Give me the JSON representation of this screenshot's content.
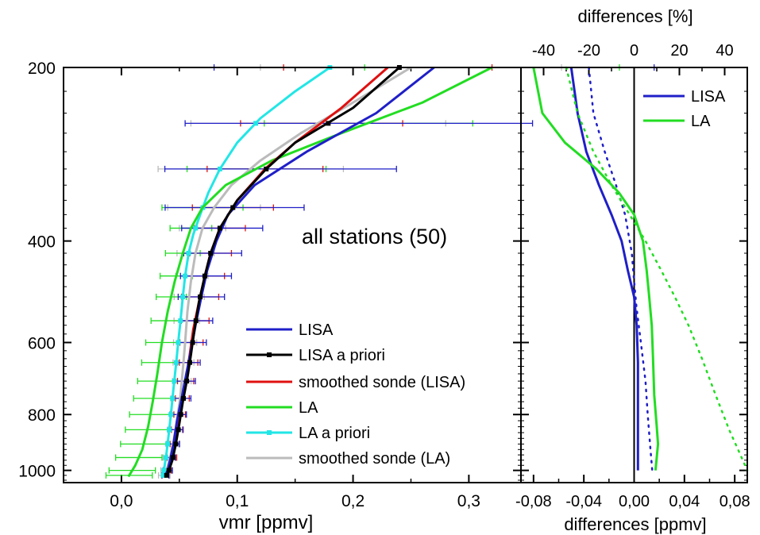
{
  "chart_data": [
    {
      "type": "line",
      "panel": "left",
      "annotation": "all stations (50)",
      "xlabel": "vmr [ppmv]",
      "ylabel": "",
      "xlim": [
        -0.05,
        0.345
      ],
      "ylim": [
        1050,
        200
      ],
      "y_scale": "log",
      "x_ticks": [
        0.0,
        0.1,
        0.2,
        0.3
      ],
      "x_tick_labels": [
        "0,0",
        "0,1",
        "0,2",
        "0,3"
      ],
      "y_ticks": [
        200,
        400,
        600,
        800,
        1000
      ],
      "y_tick_labels": [
        "200",
        "400",
        "600",
        "800",
        "1000"
      ],
      "legend_position": "bottom-right",
      "error_levels": [
        200,
        250,
        300,
        350,
        380,
        420,
        460,
        500,
        550,
        600,
        650,
        700,
        750,
        800,
        850,
        900,
        950,
        1000,
        1020
      ],
      "series": [
        {
          "name": "LISA",
          "color": "#1f1fc8",
          "marker": "none",
          "points": [
            [
              0.27,
              200
            ],
            [
              0.22,
              240
            ],
            [
              0.16,
              280
            ],
            [
              0.115,
              320
            ],
            [
              0.092,
              360
            ],
            [
              0.082,
              400
            ],
            [
              0.074,
              450
            ],
            [
              0.069,
              500
            ],
            [
              0.064,
              560
            ],
            [
              0.06,
              620
            ],
            [
              0.056,
              680
            ],
            [
              0.052,
              750
            ],
            [
              0.048,
              820
            ],
            [
              0.045,
              900
            ],
            [
              0.042,
              960
            ],
            [
              0.04,
              1000
            ],
            [
              0.038,
              1020
            ]
          ],
          "error_x": [
            0.19,
            0.15,
            0.1,
            0.06,
            0.035,
            0.025,
            0.022,
            0.02,
            0.014,
            0.012,
            0.01,
            0.009,
            0.008,
            0.007,
            0.006,
            0.005,
            0.004,
            0.004,
            0.003
          ]
        },
        {
          "name": "LISA a priori",
          "color": "#000000",
          "marker": "square",
          "points": [
            [
              0.24,
              200
            ],
            [
              0.2,
              235
            ],
            [
              0.15,
              270
            ],
            [
              0.125,
              300
            ],
            [
              0.1,
              340
            ],
            [
              0.085,
              380
            ],
            [
              0.077,
              420
            ],
            [
              0.072,
              460
            ],
            [
              0.067,
              510
            ],
            [
              0.063,
              570
            ],
            [
              0.06,
              630
            ],
            [
              0.057,
              690
            ],
            [
              0.053,
              760
            ],
            [
              0.05,
              830
            ],
            [
              0.047,
              900
            ],
            [
              0.044,
              960
            ],
            [
              0.041,
              1000
            ],
            [
              0.039,
              1020
            ]
          ]
        },
        {
          "name": "smoothed sonde (LISA)",
          "color": "#e01010",
          "marker": "none",
          "points": [
            [
              0.23,
              200
            ],
            [
              0.19,
              235
            ],
            [
              0.15,
              270
            ],
            [
              0.124,
              300
            ],
            [
              0.1,
              340
            ],
            [
              0.085,
              380
            ],
            [
              0.077,
              420
            ],
            [
              0.072,
              460
            ],
            [
              0.067,
              510
            ],
            [
              0.062,
              570
            ],
            [
              0.059,
              630
            ],
            [
              0.056,
              690
            ],
            [
              0.052,
              760
            ],
            [
              0.049,
              830
            ],
            [
              0.046,
              900
            ],
            [
              0.043,
              960
            ],
            [
              0.04,
              1000
            ],
            [
              0.038,
              1020
            ]
          ],
          "error_x": [
            0.09,
            0.07,
            0.05,
            0.035,
            0.022,
            0.018,
            0.017,
            0.016,
            0.012,
            0.01,
            0.008,
            0.007,
            0.006,
            0.005,
            0.005,
            0.004,
            0.004,
            0.003,
            0.003
          ]
        },
        {
          "name": "LA",
          "color": "#22dd22",
          "marker": "none",
          "points": [
            [
              0.32,
              200
            ],
            [
              0.26,
              230
            ],
            [
              0.19,
              260
            ],
            [
              0.13,
              290
            ],
            [
              0.09,
              320
            ],
            [
              0.07,
              350
            ],
            [
              0.06,
              380
            ],
            [
              0.053,
              420
            ],
            [
              0.046,
              470
            ],
            [
              0.04,
              530
            ],
            [
              0.035,
              600
            ],
            [
              0.031,
              680
            ],
            [
              0.027,
              760
            ],
            [
              0.023,
              840
            ],
            [
              0.018,
              920
            ],
            [
              0.012,
              980
            ],
            [
              0.008,
              1010
            ],
            [
              0.006,
              1025
            ]
          ],
          "error_x": [
            0.11,
            0.09,
            0.06,
            0.035,
            0.018,
            0.015,
            0.014,
            0.013,
            0.013,
            0.014,
            0.015,
            0.016,
            0.017,
            0.018,
            0.019,
            0.02,
            0.02,
            0.02,
            0.02
          ]
        },
        {
          "name": "LA a priori",
          "color": "#22e6e6",
          "marker": "square",
          "points": [
            [
              0.18,
              200
            ],
            [
              0.15,
              220
            ],
            [
              0.12,
              245
            ],
            [
              0.1,
              270
            ],
            [
              0.085,
              300
            ],
            [
              0.075,
              330
            ],
            [
              0.068,
              360
            ],
            [
              0.062,
              390
            ],
            [
              0.058,
              420
            ],
            [
              0.055,
              460
            ],
            [
              0.053,
              500
            ],
            [
              0.051,
              550
            ],
            [
              0.049,
              600
            ],
            [
              0.047,
              660
            ],
            [
              0.045,
              720
            ],
            [
              0.043,
              790
            ],
            [
              0.041,
              860
            ],
            [
              0.039,
              930
            ],
            [
              0.037,
              990
            ],
            [
              0.036,
              1020
            ]
          ]
        },
        {
          "name": "smoothed sonde (LA)",
          "color": "#bbbbbb",
          "marker": "none",
          "points": [
            [
              0.25,
              200
            ],
            [
              0.2,
              230
            ],
            [
              0.155,
              260
            ],
            [
              0.12,
              290
            ],
            [
              0.095,
              320
            ],
            [
              0.08,
              350
            ],
            [
              0.07,
              380
            ],
            [
              0.064,
              420
            ],
            [
              0.06,
              470
            ],
            [
              0.057,
              530
            ],
            [
              0.055,
              600
            ],
            [
              0.053,
              670
            ],
            [
              0.051,
              740
            ],
            [
              0.048,
              820
            ],
            [
              0.045,
              890
            ],
            [
              0.042,
              950
            ],
            [
              0.039,
              1000
            ],
            [
              0.037,
              1020
            ]
          ],
          "error_x": [
            0.13,
            0.11,
            0.08,
            0.04,
            0.02,
            0.016,
            0.014,
            0.013,
            0.011,
            0.01,
            0.009,
            0.008,
            0.008,
            0.007,
            0.007,
            0.006,
            0.006,
            0.005,
            0.005
          ]
        }
      ]
    },
    {
      "type": "line",
      "panel": "right",
      "xlabel": "differences [ppmv]",
      "x2label": "differences [%]",
      "ylabel": "",
      "xlim": [
        -0.09,
        0.09
      ],
      "x2lim": [
        -50,
        50
      ],
      "ylim": [
        1050,
        200
      ],
      "y_scale": "log",
      "x_ticks": [
        -0.08,
        -0.04,
        0.0,
        0.04,
        0.08
      ],
      "x_tick_labels": [
        "-0,08",
        "-0,04",
        "0,00",
        "0,04",
        "0,08"
      ],
      "x2_ticks": [
        -40,
        -20,
        0,
        20,
        40
      ],
      "x2_tick_labels": [
        "-40",
        "-20",
        "0",
        "20",
        "40"
      ],
      "legend_position": "top-right",
      "series": [
        {
          "name": "LISA",
          "color": "#1f1fc8",
          "style": "solid",
          "axis": "ppmv",
          "points": [
            [
              -0.05,
              200
            ],
            [
              -0.045,
              240
            ],
            [
              -0.038,
              280
            ],
            [
              -0.028,
              320
            ],
            [
              -0.018,
              360
            ],
            [
              -0.01,
              400
            ],
            [
              -0.005,
              450
            ],
            [
              0.0,
              500
            ],
            [
              0.002,
              560
            ],
            [
              0.003,
              650
            ],
            [
              0.003,
              750
            ],
            [
              0.003,
              850
            ],
            [
              0.003,
              950
            ],
            [
              0.003,
              1000
            ]
          ]
        },
        {
          "name": "LISA",
          "color": "#1f1fc8",
          "style": "dotted",
          "axis": "percent",
          "points": [
            [
              -20,
              200
            ],
            [
              -18,
              240
            ],
            [
              -13,
              280
            ],
            [
              -8,
              320
            ],
            [
              -4,
              360
            ],
            [
              -1,
              420
            ],
            [
              0,
              470
            ],
            [
              1,
              520
            ],
            [
              3,
              600
            ],
            [
              5,
              700
            ],
            [
              6,
              800
            ],
            [
              7,
              900
            ],
            [
              8,
              1000
            ]
          ]
        },
        {
          "name": "LA",
          "color": "#22dd22",
          "style": "solid",
          "axis": "ppmv",
          "points": [
            [
              -0.08,
              200
            ],
            [
              -0.073,
              240
            ],
            [
              -0.055,
              270
            ],
            [
              -0.03,
              300
            ],
            [
              -0.012,
              330
            ],
            [
              0.0,
              360
            ],
            [
              0.007,
              400
            ],
            [
              0.01,
              450
            ],
            [
              0.012,
              500
            ],
            [
              0.014,
              560
            ],
            [
              0.015,
              640
            ],
            [
              0.016,
              740
            ],
            [
              0.018,
              840
            ],
            [
              0.019,
              900
            ],
            [
              0.017,
              1000
            ]
          ]
        },
        {
          "name": "LA",
          "color": "#22dd22",
          "style": "dotted",
          "axis": "percent",
          "points": [
            [
              -30,
              200
            ],
            [
              -25,
              240
            ],
            [
              -18,
              280
            ],
            [
              -10,
              320
            ],
            [
              -2,
              360
            ],
            [
              5,
              400
            ],
            [
              12,
              450
            ],
            [
              18,
              500
            ],
            [
              24,
              560
            ],
            [
              30,
              640
            ],
            [
              36,
              740
            ],
            [
              42,
              850
            ],
            [
              48,
              960
            ],
            [
              50,
              1000
            ]
          ]
        }
      ],
      "legend_entries": [
        {
          "name": "LISA",
          "color": "#1f1fc8"
        },
        {
          "name": "LA",
          "color": "#22dd22"
        }
      ]
    }
  ]
}
